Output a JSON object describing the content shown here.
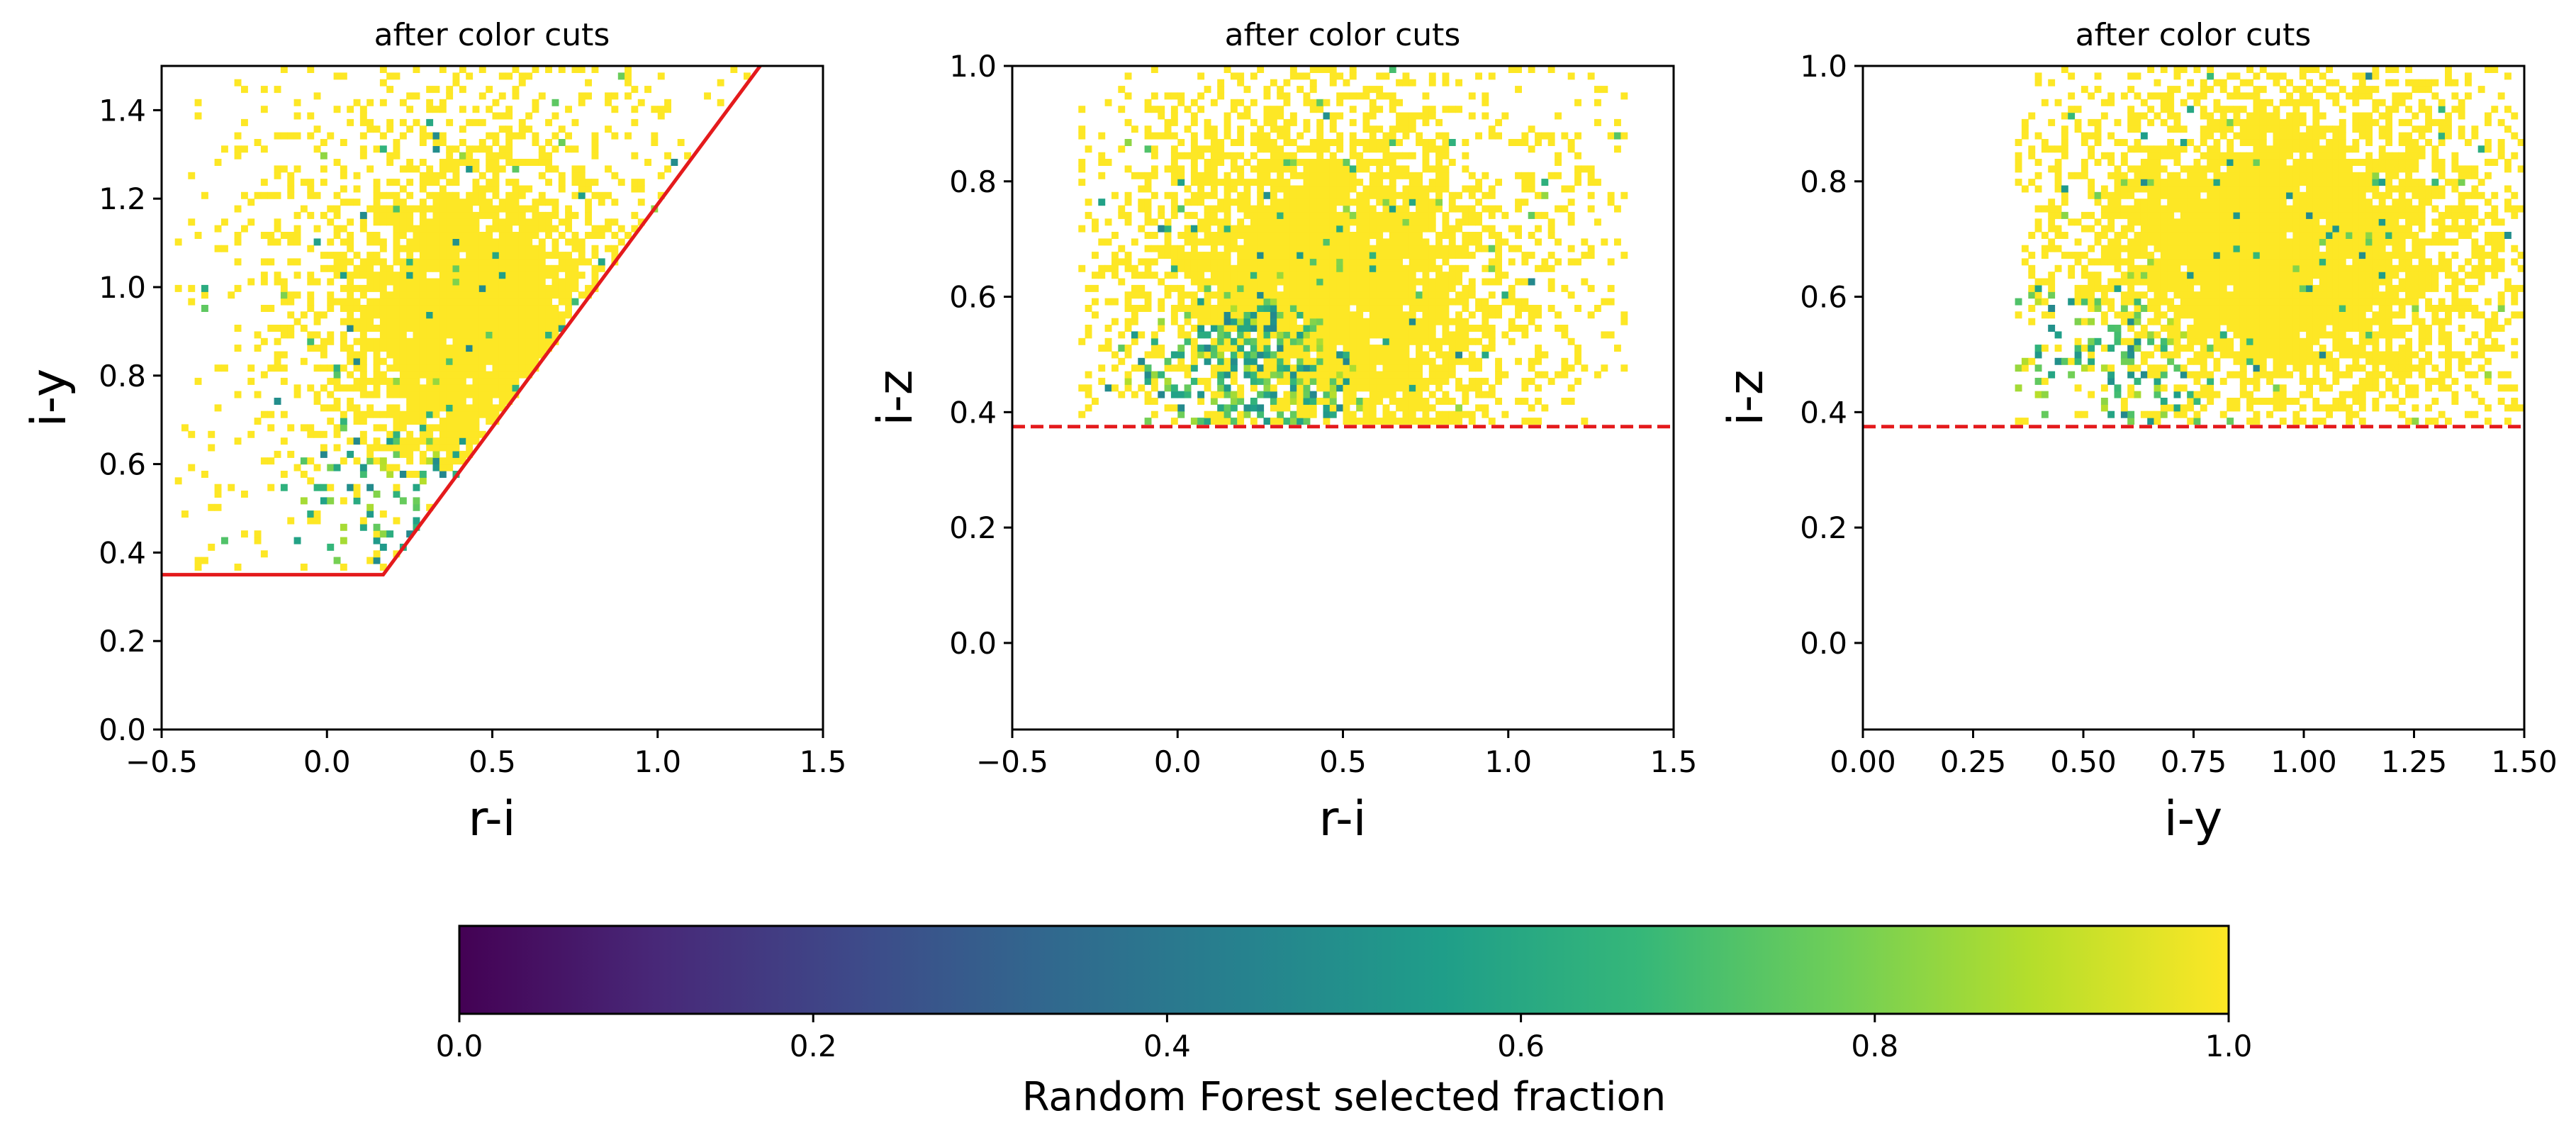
{
  "chart_data": [
    {
      "type": "heatmap",
      "title": "after color cuts",
      "xlabel": "r-i",
      "ylabel": "i-y",
      "xlim": [
        -0.5,
        1.5
      ],
      "ylim": [
        0.0,
        1.5
      ],
      "xticks": [
        "−0.5",
        "0.0",
        "0.5",
        "1.0",
        "1.5"
      ],
      "xtick_values": [
        -0.5,
        0.0,
        0.5,
        1.0,
        1.5
      ],
      "yticks": [
        "0.0",
        "0.2",
        "0.4",
        "0.6",
        "0.8",
        "1.0",
        "1.2",
        "1.4"
      ],
      "ytick_values": [
        0.0,
        0.2,
        0.4,
        0.6,
        0.8,
        1.0,
        1.2,
        1.4
      ],
      "cut_line": {
        "style": "solid",
        "color": "#e41a1c",
        "points": [
          [
            -0.5,
            0.35
          ],
          [
            0.17,
            0.35
          ],
          [
            1.31,
            1.5
          ]
        ]
      },
      "density": {
        "x_range": [
          -0.45,
          1.3
        ],
        "y_range": [
          0.36,
          1.5
        ],
        "core": {
          "x": 0.45,
          "y": 0.92,
          "sx": 0.22,
          "sy": 0.22
        },
        "low_fraction_zone": {
          "x": 0.15,
          "y": 0.5
        },
        "constraint": "y >= 0.35 and y >= 0.35 + (x - 0.17) * 1.0088"
      }
    },
    {
      "type": "heatmap",
      "title": "after color cuts",
      "xlabel": "r-i",
      "ylabel": "i-z",
      "xlim": [
        -0.5,
        1.5
      ],
      "ylim": [
        -0.15,
        1.0
      ],
      "xticks": [
        "−0.5",
        "0.0",
        "0.5",
        "1.0",
        "1.5"
      ],
      "xtick_values": [
        -0.5,
        0.0,
        0.5,
        1.0,
        1.5
      ],
      "yticks": [
        "0.0",
        "0.2",
        "0.4",
        "0.6",
        "0.8",
        "1.0"
      ],
      "ytick_values": [
        0.0,
        0.2,
        0.4,
        0.6,
        0.8,
        1.0
      ],
      "cut_line": {
        "style": "dashed",
        "color": "#e41a1c",
        "points": [
          [
            -0.5,
            0.375
          ],
          [
            1.5,
            0.375
          ]
        ]
      },
      "density": {
        "x_range": [
          -0.3,
          1.35
        ],
        "y_range": [
          0.375,
          1.0
        ],
        "core": {
          "x": 0.45,
          "y": 0.62,
          "sx": 0.28,
          "sy": 0.16
        },
        "low_fraction_zone": {
          "x": 0.2,
          "y": 0.42
        },
        "constraint": "y >= 0.375"
      }
    },
    {
      "type": "heatmap",
      "title": "after color cuts",
      "xlabel": "i-y",
      "ylabel": "i-z",
      "xlim": [
        0.0,
        1.5
      ],
      "ylim": [
        -0.15,
        1.0
      ],
      "xticks": [
        "0.00",
        "0.25",
        "0.50",
        "0.75",
        "1.00",
        "1.25",
        "1.50"
      ],
      "xtick_values": [
        0.0,
        0.25,
        0.5,
        0.75,
        1.0,
        1.25,
        1.5
      ],
      "yticks": [
        "0.0",
        "0.2",
        "0.4",
        "0.6",
        "0.8",
        "1.0"
      ],
      "ytick_values": [
        0.0,
        0.2,
        0.4,
        0.6,
        0.8,
        1.0
      ],
      "cut_line": {
        "style": "dashed",
        "color": "#e41a1c",
        "points": [
          [
            0.0,
            0.375
          ],
          [
            1.5,
            0.375
          ]
        ]
      },
      "density": {
        "x_range": [
          0.35,
          1.5
        ],
        "y_range": [
          0.375,
          1.0
        ],
        "core": {
          "x": 0.95,
          "y": 0.68,
          "sx": 0.25,
          "sy": 0.15
        },
        "low_fraction_zone": {
          "x": 0.45,
          "y": 0.42
        },
        "constraint": "y >= 0.375 and x >= 0.35"
      }
    }
  ],
  "colorbar": {
    "label": "Random Forest selected fraction",
    "range": [
      0.0,
      1.0
    ],
    "ticks": [
      "0.0",
      "0.2",
      "0.4",
      "0.6",
      "0.8",
      "1.0"
    ],
    "tick_values": [
      0.0,
      0.2,
      0.4,
      0.6,
      0.8,
      1.0
    ],
    "colormap": "viridis",
    "stops": [
      "#440154",
      "#482878",
      "#3e4989",
      "#31688e",
      "#26828e",
      "#1f9e89",
      "#35b779",
      "#6ece58",
      "#b5de2b",
      "#fde725"
    ]
  }
}
